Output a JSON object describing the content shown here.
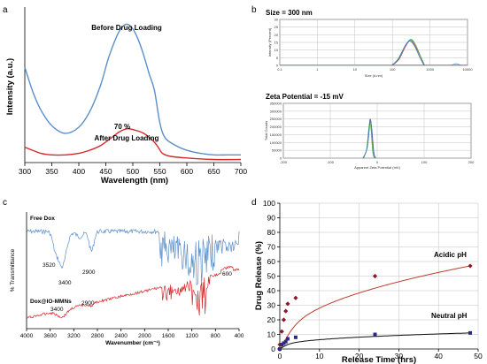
{
  "panels": {
    "a": "a",
    "b": "b",
    "c": "c",
    "d": "d"
  },
  "chart_data": [
    {
      "panel": "a",
      "type": "line",
      "xlabel": "Wavelength (nm)",
      "ylabel": "Intensity (a.u.)",
      "xlim": [
        300,
        700
      ],
      "xticks": [
        "300",
        "350",
        "400",
        "450",
        "500",
        "550",
        "600",
        "650",
        "700"
      ],
      "annotations": {
        "before": "Before Drug Loading",
        "after": "After Drug Loading",
        "percent": "70 %"
      },
      "colors": {
        "before": "#5b8fc9",
        "after": "#d9262b"
      },
      "series": [
        {
          "x": [
            300,
            315,
            330,
            350,
            375,
            400,
            420,
            440,
            455,
            470,
            480,
            490,
            500,
            510,
            520,
            530,
            540,
            550,
            560,
            580,
            600,
            625,
            650,
            675,
            700
          ],
          "y": [
            0.62,
            0.46,
            0.34,
            0.24,
            0.19,
            0.23,
            0.33,
            0.5,
            0.68,
            0.82,
            0.88,
            0.9,
            0.87,
            0.8,
            0.7,
            0.58,
            0.47,
            0.26,
            0.16,
            0.11,
            0.08,
            0.06,
            0.05,
            0.05,
            0.05
          ]
        },
        {
          "x": [
            300,
            330,
            350,
            375,
            400,
            420,
            440,
            460,
            475,
            490,
            505,
            520,
            535,
            545,
            555,
            570,
            600,
            650,
            700
          ],
          "y": [
            0.1,
            0.06,
            0.05,
            0.05,
            0.06,
            0.08,
            0.11,
            0.16,
            0.2,
            0.22,
            0.21,
            0.19,
            0.15,
            0.11,
            0.06,
            0.04,
            0.03,
            0.02,
            0.02
          ]
        }
      ]
    },
    {
      "panel": "b-top",
      "type": "line",
      "title": "Size = 300 nm",
      "xlabel": "Size (d.nm)",
      "ylabel": "Intensity (Percent)",
      "xscale": "log",
      "xlim": [
        0.1,
        10000
      ],
      "xticks": [
        "0.1",
        "1",
        "10",
        "100",
        "1000",
        "10000"
      ],
      "yticks": [
        "0",
        "5",
        "10",
        "15",
        "20",
        "25",
        "30"
      ],
      "colors": [
        "#e0453b",
        "#49a84f",
        "#3a78c8",
        "#e8a63a"
      ],
      "series": [
        {
          "peak": 300,
          "values": [
            [
              100,
              0
            ],
            [
              150,
              4
            ],
            [
              220,
              12
            ],
            [
              300,
              16.5
            ],
            [
              400,
              13
            ],
            [
              550,
              6
            ],
            [
              700,
              0
            ]
          ]
        },
        {
          "peak": 300,
          "values": [
            [
              100,
              0
            ],
            [
              150,
              4.5
            ],
            [
              220,
              13
            ],
            [
              310,
              17
            ],
            [
              410,
              13.5
            ],
            [
              560,
              6
            ],
            [
              720,
              0
            ]
          ]
        },
        {
          "peak": 300,
          "values": [
            [
              95,
              0
            ],
            [
              140,
              4
            ],
            [
              210,
              12
            ],
            [
              290,
              16
            ],
            [
              390,
              12.5
            ],
            [
              530,
              5.5
            ],
            [
              690,
              0
            ]
          ]
        }
      ],
      "minor_peak": {
        "x": 5000,
        "y": 1.2
      }
    },
    {
      "panel": "b-bottom",
      "type": "line",
      "title": "Zeta Potential = -15 mV",
      "xlabel": "Apparent Zeta Potential (mV)",
      "ylabel": "Total Counts",
      "xlim": [
        -200,
        200
      ],
      "xticks": [
        "-200",
        "-100",
        "0",
        "100",
        "200"
      ],
      "yticks": [
        "0",
        "50000",
        "100000",
        "150000",
        "200000",
        "250000",
        "300000",
        "350000"
      ],
      "series": [
        {
          "values": [
            [
              -30,
              0
            ],
            [
              -22,
              60000
            ],
            [
              -17,
              200000
            ],
            [
              -15,
              250000
            ],
            [
              -12,
              190000
            ],
            [
              -8,
              40000
            ],
            [
              -4,
              0
            ]
          ]
        },
        {
          "values": [
            [
              -31,
              0
            ],
            [
              -23,
              50000
            ],
            [
              -18,
              190000
            ],
            [
              -15,
              240000
            ],
            [
              -13,
              180000
            ],
            [
              -9,
              30000
            ],
            [
              -5,
              0
            ]
          ]
        },
        {
          "values": [
            [
              -29,
              0
            ],
            [
              -21,
              70000
            ],
            [
              -16,
              210000
            ],
            [
              -14,
              245000
            ],
            [
              -11,
              170000
            ],
            [
              -7,
              35000
            ],
            [
              -3,
              0
            ]
          ]
        }
      ]
    },
    {
      "panel": "c",
      "type": "line",
      "xlabel": "Wavenumber (cm⁻¹)",
      "ylabel": "% Transmittance",
      "xlim": [
        4000,
        400
      ],
      "xticks": [
        "4000",
        "3600",
        "3200",
        "2800",
        "2400",
        "2000",
        "1600",
        "1200",
        "800",
        "400"
      ],
      "series_labels": {
        "free": "Free Dox",
        "loaded": "Dox@IO-MMNs"
      },
      "peak_labels": {
        "free_3520": "3520",
        "free_3400": "3400",
        "free_2900": "2900",
        "loaded_3400": "3400",
        "loaded_2900": "2900",
        "loaded_600": "600"
      },
      "colors": {
        "free": "#5b8fc9",
        "loaded": "#d9262b"
      }
    },
    {
      "panel": "d",
      "type": "line",
      "xlabel": "Release Time (hrs)",
      "ylabel": "Drug Release (%)",
      "xlim": [
        0,
        50
      ],
      "ylim": [
        0,
        100
      ],
      "xticks": [
        "0",
        "10",
        "20",
        "30",
        "40",
        "50"
      ],
      "yticks": [
        "0",
        "10",
        "20",
        "30",
        "40",
        "50",
        "60",
        "70",
        "80",
        "90",
        "100"
      ],
      "colors": {
        "acidic": "#8b1a2e",
        "neutral": "#2b2b85",
        "fit_acidic": "#c0392b",
        "fit_neutral": "#111111"
      },
      "series": [
        {
          "name": "Acidic pH",
          "x": [
            0,
            0.5,
            1,
            1.5,
            2,
            4,
            24,
            48
          ],
          "y": [
            3,
            12,
            20,
            26,
            31,
            35,
            50,
            57
          ]
        },
        {
          "name": "Neutral pH",
          "x": [
            0,
            0.5,
            1,
            1.5,
            2,
            4,
            24,
            48
          ],
          "y": [
            0,
            3,
            4,
            5,
            7,
            8,
            10,
            11
          ]
        }
      ]
    }
  ]
}
